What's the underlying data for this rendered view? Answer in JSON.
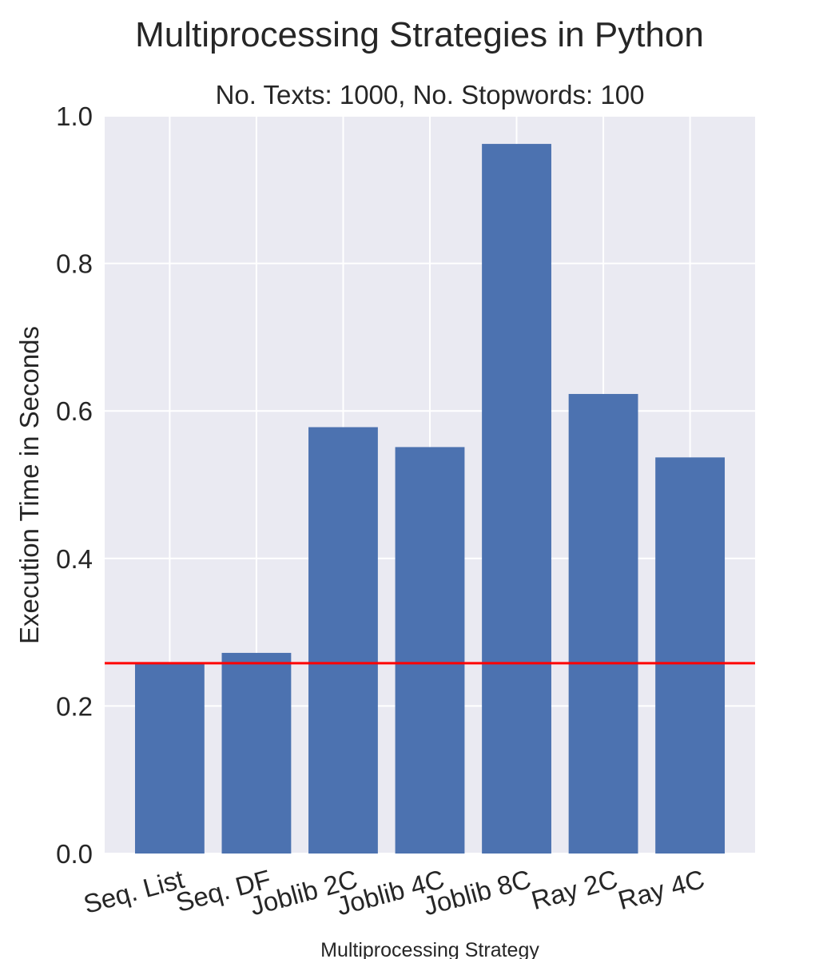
{
  "chart_data": {
    "type": "bar",
    "title": "Multiprocessing Strategies in Python",
    "subtitle": "No. Texts: 1000, No. Stopwords: 100",
    "xlabel": "Multiprocessing Strategy",
    "ylabel": "Execution Time in Seconds",
    "categories": [
      "Seq. List",
      "Seq. DF",
      "Joblib 2C",
      "Joblib 4C",
      "Joblib 8C",
      "Ray 2C",
      "Ray 4C"
    ],
    "values": [
      0.258,
      0.272,
      0.578,
      0.551,
      0.962,
      0.623,
      0.537
    ],
    "ylim": [
      0.0,
      1.0
    ],
    "yticks": [
      "0.0",
      "0.2",
      "0.4",
      "0.6",
      "0.8",
      "1.0"
    ],
    "grid": true,
    "reference_line": {
      "value": 0.258,
      "color": "#ff0000"
    },
    "colors": {
      "bar": "#4c72b0",
      "background": "#eaeaf2",
      "grid": "#ffffff",
      "text": "#262626"
    }
  }
}
